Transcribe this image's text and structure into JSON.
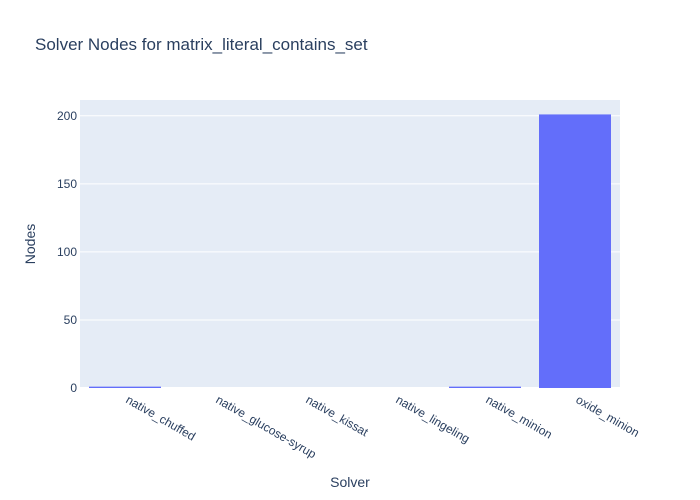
{
  "chart_data": {
    "type": "bar",
    "title": "Solver Nodes for matrix_literal_contains_set",
    "xlabel": "Solver",
    "ylabel": "Nodes",
    "categories": [
      "native_chuffed",
      "native_glucose-syrup",
      "native_kissat",
      "native_lingeling",
      "native_minion",
      "oxide_minion"
    ],
    "values": [
      1,
      0,
      0,
      0,
      1,
      201
    ],
    "ylim": [
      0,
      211.6
    ],
    "yticks": [
      0,
      50,
      100,
      150,
      200
    ],
    "grid": true,
    "colors": {
      "bar": "#636efa",
      "plot_bg": "#e5ecf6",
      "grid": "#ffffff",
      "text": "#2a3f5f"
    }
  }
}
